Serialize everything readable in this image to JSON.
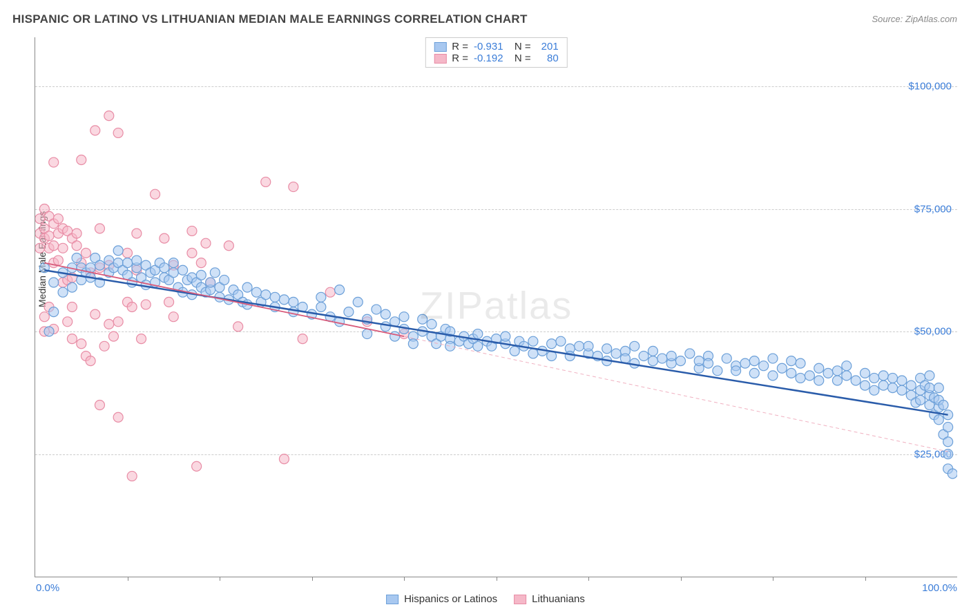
{
  "title": "HISPANIC OR LATINO VS LITHUANIAN MEDIAN MALE EARNINGS CORRELATION CHART",
  "source": "Source: ZipAtlas.com",
  "ylabel": "Median Male Earnings",
  "watermark": "ZIPatlas",
  "chart": {
    "type": "scatter",
    "xlim": [
      0,
      100
    ],
    "ylim": [
      0,
      110000
    ],
    "y_grid_min": 25000,
    "y_grid_max": 100000,
    "y_grid_step": 25000,
    "x_tick_step": 10,
    "x_axis_labels": {
      "min": "0.0%",
      "max": "100.0%"
    },
    "y_axis_labels": [
      "$25,000",
      "$50,000",
      "$75,000",
      "$100,000"
    ],
    "background_color": "#ffffff",
    "grid_color": "#cccccc",
    "axis_color": "#888888",
    "tick_label_color": "#3b7dd8",
    "series": [
      {
        "name": "Hispanics or Latinos",
        "color_fill": "#a8c8f0",
        "color_stroke": "#6b9fd8",
        "fill_opacity": 0.55,
        "marker_radius": 7,
        "R": "-0.931",
        "N": "201",
        "trend": {
          "x1": 1,
          "y1": 62500,
          "x2": 99,
          "y2": 33000,
          "color": "#2a5caa",
          "width": 2.5
        },
        "points": [
          [
            1,
            63000
          ],
          [
            1.5,
            50000
          ],
          [
            2,
            60000
          ],
          [
            2,
            54000
          ],
          [
            3,
            62000
          ],
          [
            3,
            58000
          ],
          [
            4,
            63000
          ],
          [
            4,
            59000
          ],
          [
            4.5,
            65000
          ],
          [
            5,
            60500
          ],
          [
            5,
            63000
          ],
          [
            5.5,
            62000
          ],
          [
            6,
            63000
          ],
          [
            6,
            61000
          ],
          [
            6.5,
            65000
          ],
          [
            7,
            63500
          ],
          [
            7,
            60000
          ],
          [
            8,
            64500
          ],
          [
            8,
            62000
          ],
          [
            8.5,
            63000
          ],
          [
            9,
            64000
          ],
          [
            9,
            66500
          ],
          [
            9.5,
            62500
          ],
          [
            10,
            64000
          ],
          [
            10,
            61500
          ],
          [
            10.5,
            60000
          ],
          [
            11,
            63000
          ],
          [
            11,
            64500
          ],
          [
            11.5,
            61000
          ],
          [
            12,
            63500
          ],
          [
            12,
            59500
          ],
          [
            12.5,
            62000
          ],
          [
            13,
            62500
          ],
          [
            13,
            60000
          ],
          [
            13.5,
            64000
          ],
          [
            14,
            63000
          ],
          [
            14,
            61000
          ],
          [
            14.5,
            60500
          ],
          [
            15,
            62000
          ],
          [
            15,
            64000
          ],
          [
            15.5,
            59000
          ],
          [
            16,
            62500
          ],
          [
            16,
            58000
          ],
          [
            16.5,
            60500
          ],
          [
            17,
            57500
          ],
          [
            17,
            61000
          ],
          [
            17.5,
            60000
          ],
          [
            18,
            59000
          ],
          [
            18,
            61500
          ],
          [
            18.5,
            58000
          ],
          [
            19,
            58500
          ],
          [
            19,
            60000
          ],
          [
            19.5,
            62000
          ],
          [
            20,
            57000
          ],
          [
            20,
            59000
          ],
          [
            20.5,
            60500
          ],
          [
            21,
            56500
          ],
          [
            21.5,
            58500
          ],
          [
            22,
            57500
          ],
          [
            22.5,
            56000
          ],
          [
            23,
            59000
          ],
          [
            23,
            55500
          ],
          [
            24,
            58000
          ],
          [
            24.5,
            56000
          ],
          [
            25,
            57500
          ],
          [
            26,
            55000
          ],
          [
            26,
            57000
          ],
          [
            27,
            56500
          ],
          [
            28,
            54000
          ],
          [
            28,
            56000
          ],
          [
            29,
            55000
          ],
          [
            30,
            53500
          ],
          [
            31,
            55000
          ],
          [
            31,
            57000
          ],
          [
            32,
            53000
          ],
          [
            33,
            58500
          ],
          [
            33,
            52000
          ],
          [
            34,
            54000
          ],
          [
            35,
            56000
          ],
          [
            36,
            52500
          ],
          [
            36,
            49500
          ],
          [
            37,
            54500
          ],
          [
            38,
            51000
          ],
          [
            38,
            53500
          ],
          [
            39,
            49000
          ],
          [
            39,
            52000
          ],
          [
            40,
            50500
          ],
          [
            40,
            53000
          ],
          [
            41,
            49000
          ],
          [
            41,
            47500
          ],
          [
            42,
            52500
          ],
          [
            42,
            50000
          ],
          [
            43,
            51500
          ],
          [
            43,
            49000
          ],
          [
            43.5,
            47500
          ],
          [
            44,
            49000
          ],
          [
            44.5,
            50500
          ],
          [
            45,
            48500
          ],
          [
            45,
            50000
          ],
          [
            45,
            47000
          ],
          [
            46,
            48000
          ],
          [
            46.5,
            49000
          ],
          [
            47,
            47500
          ],
          [
            47.5,
            48500
          ],
          [
            48,
            49500
          ],
          [
            48,
            47000
          ],
          [
            49,
            48000
          ],
          [
            49.5,
            47000
          ],
          [
            50,
            48500
          ],
          [
            51,
            47500
          ],
          [
            51,
            49000
          ],
          [
            52,
            46000
          ],
          [
            52.5,
            48000
          ],
          [
            53,
            47000
          ],
          [
            54,
            48000
          ],
          [
            54,
            45500
          ],
          [
            55,
            46000
          ],
          [
            56,
            47500
          ],
          [
            56,
            45000
          ],
          [
            57,
            48000
          ],
          [
            58,
            46500
          ],
          [
            58,
            45000
          ],
          [
            59,
            47000
          ],
          [
            60,
            45500
          ],
          [
            60,
            47000
          ],
          [
            61,
            45000
          ],
          [
            62,
            46500
          ],
          [
            62,
            44000
          ],
          [
            63,
            45500
          ],
          [
            64,
            46000
          ],
          [
            64,
            44500
          ],
          [
            65,
            43500
          ],
          [
            65,
            47000
          ],
          [
            66,
            45000
          ],
          [
            67,
            44000
          ],
          [
            67,
            46000
          ],
          [
            68,
            44500
          ],
          [
            69,
            43500
          ],
          [
            69,
            45000
          ],
          [
            70,
            44000
          ],
          [
            71,
            45500
          ],
          [
            72,
            42500
          ],
          [
            72,
            44000
          ],
          [
            73,
            45000
          ],
          [
            73,
            43500
          ],
          [
            74,
            42000
          ],
          [
            75,
            44500
          ],
          [
            76,
            43000
          ],
          [
            76,
            42000
          ],
          [
            77,
            43500
          ],
          [
            78,
            41500
          ],
          [
            78,
            44000
          ],
          [
            79,
            43000
          ],
          [
            80,
            41000
          ],
          [
            80,
            44500
          ],
          [
            81,
            42500
          ],
          [
            82,
            41500
          ],
          [
            82,
            44000
          ],
          [
            83,
            40500
          ],
          [
            83,
            43500
          ],
          [
            84,
            41000
          ],
          [
            85,
            42500
          ],
          [
            85,
            40000
          ],
          [
            86,
            41500
          ],
          [
            87,
            42000
          ],
          [
            87,
            40000
          ],
          [
            88,
            41000
          ],
          [
            88,
            43000
          ],
          [
            89,
            40000
          ],
          [
            90,
            41500
          ],
          [
            90,
            39000
          ],
          [
            91,
            40500
          ],
          [
            91,
            38000
          ],
          [
            92,
            39000
          ],
          [
            92,
            41000
          ],
          [
            93,
            38500
          ],
          [
            93,
            40500
          ],
          [
            94,
            38000
          ],
          [
            94,
            40000
          ],
          [
            95,
            37000
          ],
          [
            95,
            39000
          ],
          [
            95.5,
            35500
          ],
          [
            96,
            38000
          ],
          [
            96,
            40500
          ],
          [
            96,
            36000
          ],
          [
            96.5,
            39000
          ],
          [
            97,
            37000
          ],
          [
            97,
            41000
          ],
          [
            97,
            35000
          ],
          [
            97,
            38500
          ],
          [
            97.5,
            33000
          ],
          [
            97.5,
            36500
          ],
          [
            98,
            34500
          ],
          [
            98,
            38500
          ],
          [
            98,
            36000
          ],
          [
            98,
            32000
          ],
          [
            98.5,
            29000
          ],
          [
            98.5,
            35000
          ],
          [
            99,
            30500
          ],
          [
            99,
            27500
          ],
          [
            99,
            33000
          ],
          [
            99,
            22000
          ],
          [
            99,
            25000
          ],
          [
            99.5,
            21000
          ]
        ]
      },
      {
        "name": "Lithuanians",
        "color_fill": "#f5b8c8",
        "color_stroke": "#e88ca5",
        "fill_opacity": 0.55,
        "marker_radius": 7,
        "R": "-0.192",
        "N": "80",
        "trend_solid": {
          "x1": 1,
          "y1": 64000,
          "x2": 40,
          "y2": 49000,
          "color": "#d85a7a",
          "width": 1.8
        },
        "trend_dashed": {
          "x1": 40,
          "y1": 49000,
          "x2": 99,
          "y2": 25500,
          "color": "#f0b0c0",
          "width": 1,
          "dash": "5,4"
        },
        "points": [
          [
            0.5,
            70000
          ],
          [
            0.5,
            67000
          ],
          [
            0.5,
            73000
          ],
          [
            1,
            69000
          ],
          [
            1,
            75000
          ],
          [
            1,
            53000
          ],
          [
            1,
            50000
          ],
          [
            1,
            71000
          ],
          [
            1.5,
            73500
          ],
          [
            1.5,
            67000
          ],
          [
            1.5,
            69500
          ],
          [
            1.5,
            55000
          ],
          [
            2,
            84500
          ],
          [
            2,
            72000
          ],
          [
            2,
            67500
          ],
          [
            2,
            64000
          ],
          [
            2,
            50500
          ],
          [
            2.5,
            64500
          ],
          [
            2.5,
            73000
          ],
          [
            2.5,
            70000
          ],
          [
            3,
            71000
          ],
          [
            3,
            60000
          ],
          [
            3,
            67000
          ],
          [
            3.5,
            70500
          ],
          [
            3.5,
            60500
          ],
          [
            3.5,
            52000
          ],
          [
            4,
            69000
          ],
          [
            4,
            48500
          ],
          [
            4,
            55000
          ],
          [
            4,
            61000
          ],
          [
            4.5,
            70000
          ],
          [
            4.5,
            67500
          ],
          [
            5,
            85000
          ],
          [
            5,
            64000
          ],
          [
            5,
            47500
          ],
          [
            5.5,
            66000
          ],
          [
            5.5,
            45000
          ],
          [
            6,
            62000
          ],
          [
            6,
            44000
          ],
          [
            6.5,
            91000
          ],
          [
            6.5,
            53500
          ],
          [
            7,
            71000
          ],
          [
            7,
            63000
          ],
          [
            7,
            35000
          ],
          [
            7.5,
            47000
          ],
          [
            8,
            94000
          ],
          [
            8,
            51500
          ],
          [
            8,
            63500
          ],
          [
            8.5,
            49000
          ],
          [
            9,
            90500
          ],
          [
            9,
            32500
          ],
          [
            9,
            52000
          ],
          [
            10,
            56000
          ],
          [
            10,
            66000
          ],
          [
            10.5,
            55000
          ],
          [
            10.5,
            20500
          ],
          [
            11,
            70000
          ],
          [
            11,
            62500
          ],
          [
            11.5,
            48500
          ],
          [
            12,
            55500
          ],
          [
            13,
            78000
          ],
          [
            14,
            69000
          ],
          [
            14.5,
            56000
          ],
          [
            15,
            63500
          ],
          [
            15,
            53000
          ],
          [
            17,
            70500
          ],
          [
            17,
            66000
          ],
          [
            17.5,
            22500
          ],
          [
            18,
            64000
          ],
          [
            18.5,
            68000
          ],
          [
            19,
            60000
          ],
          [
            21,
            67500
          ],
          [
            22,
            51000
          ],
          [
            25,
            80500
          ],
          [
            27,
            24000
          ],
          [
            28,
            79500
          ],
          [
            29,
            48500
          ],
          [
            32,
            58000
          ],
          [
            36,
            52000
          ],
          [
            40,
            49500
          ]
        ]
      }
    ]
  },
  "legend_bottom": [
    {
      "label": "Hispanics or Latinos",
      "fill": "#a8c8f0",
      "stroke": "#6b9fd8"
    },
    {
      "label": "Lithuanians",
      "fill": "#f5b8c8",
      "stroke": "#e88ca5"
    }
  ]
}
